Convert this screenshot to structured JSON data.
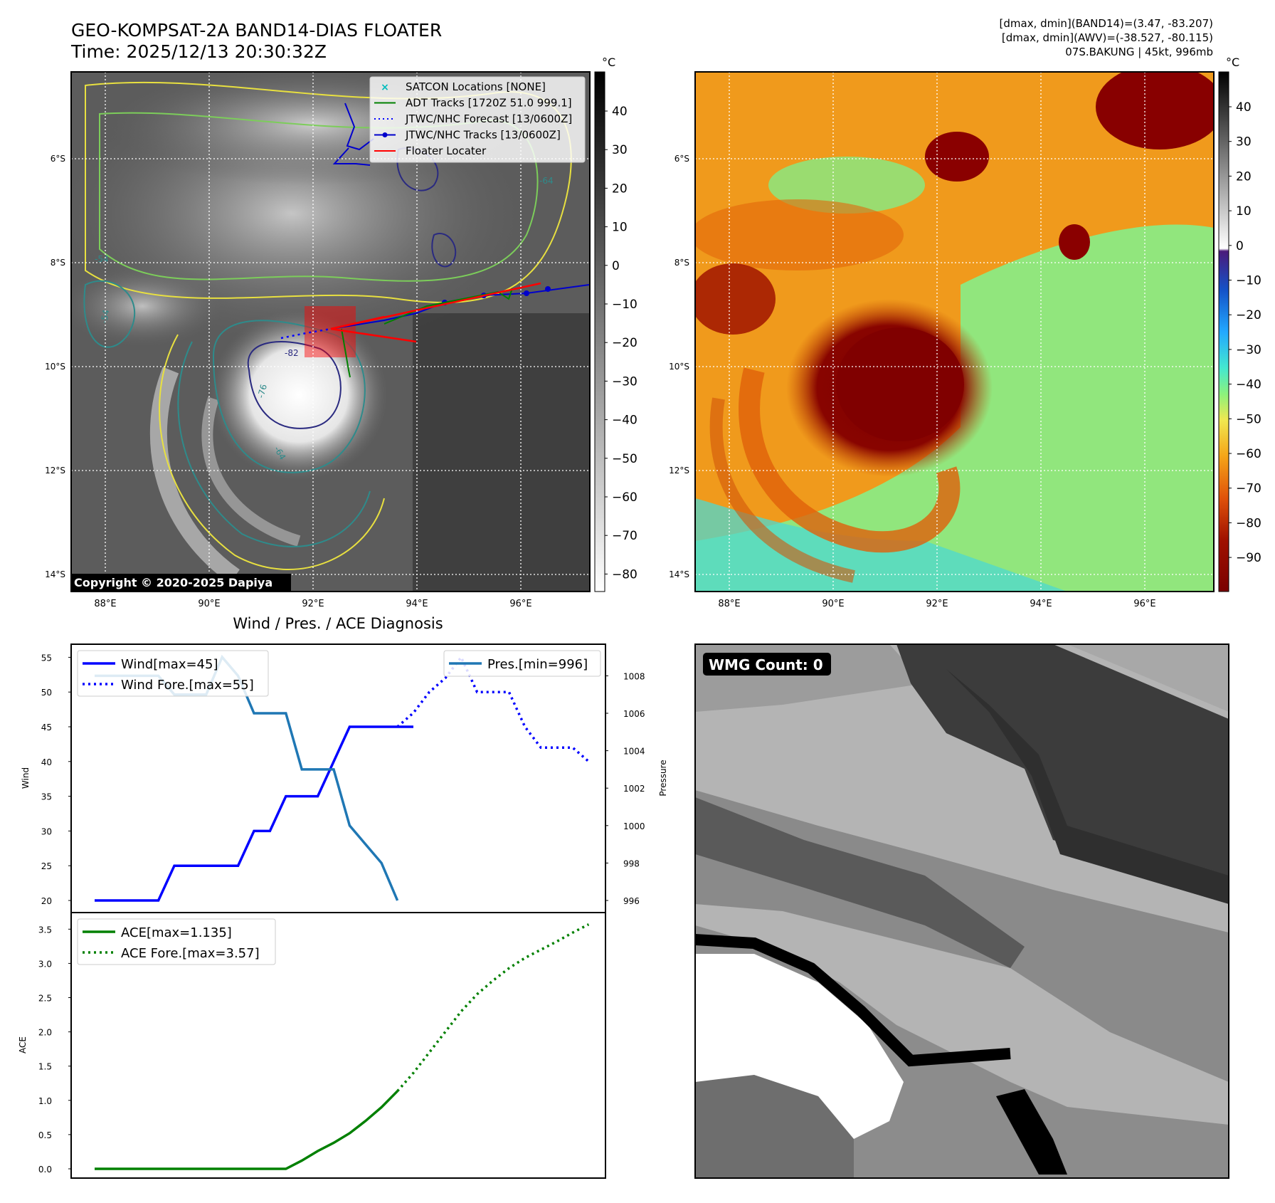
{
  "header": {
    "title_line1": "GEO-KOMPSAT-2A BAND14-DIAS FLOATER",
    "title_line2": "Time: 2025/12/13 20:30:32Z",
    "info_line1": "[dmax, dmin](BAND14)=(3.47, -83.207)",
    "info_line2": "[dmax, dmin](AWV)=(-38.527, -80.115)",
    "info_line3": "07S.BAKUNG | 45kt, 996mb"
  },
  "map": {
    "lat_ticks": [
      "6°S",
      "8°S",
      "10°S",
      "12°S",
      "14°S"
    ],
    "lon_ticks": [
      "88°E",
      "90°E",
      "92°E",
      "94°E",
      "96°E"
    ],
    "copyright": "Copyright © 2020-2025 Dapiya",
    "contour_labels": [
      "-76",
      "-64",
      "-64",
      "-54",
      "-54",
      "-82"
    ],
    "legend": [
      {
        "label": "SATCON Locations [NONE]",
        "color": "#00bcbc",
        "style": "x-marker"
      },
      {
        "label": "ADT Tracks [1720Z 51.0 999.1]",
        "color": "#008000",
        "style": "solid"
      },
      {
        "label": "JTWC/NHC Forecast [13/0600Z]",
        "color": "#0000ff",
        "style": "dotted"
      },
      {
        "label": "JTWC/NHC Tracks [13/0600Z]",
        "color": "#0000cc",
        "style": "solid-dot"
      },
      {
        "label": "Floater Locater",
        "color": "#ff0000",
        "style": "solid"
      }
    ]
  },
  "colorbar_gray": {
    "unit": "°C",
    "ticks": [
      "40",
      "30",
      "20",
      "10",
      "0",
      "−10",
      "−20",
      "−30",
      "−40",
      "−50",
      "−60",
      "−70",
      "−80"
    ]
  },
  "colorbar_color": {
    "unit": "°C",
    "ticks": [
      "40",
      "30",
      "20",
      "10",
      "0",
      "−10",
      "−20",
      "−30",
      "−40",
      "−50",
      "−60",
      "−70",
      "−80",
      "−90"
    ]
  },
  "wmg": {
    "label": "WMG Count: 0"
  },
  "colors": {
    "wind": "#0000ff",
    "pressure": "#1f77b4",
    "ace": "#008000",
    "adt": "#008000",
    "floater": "#ff0000"
  },
  "chart_data": [
    {
      "type": "line",
      "title": "Wind / Pres. / ACE Diagnosis",
      "ylabel": "Wind",
      "y2label": "Pressure",
      "ylim": [
        19,
        56
      ],
      "y2lim": [
        995.3,
        1009.5
      ],
      "yticks": [
        "20",
        "25",
        "30",
        "35",
        "40",
        "45",
        "50",
        "55"
      ],
      "y2ticks": [
        "996",
        "998",
        "1000",
        "1002",
        "1004",
        "1006",
        "1008"
      ],
      "x": [
        0,
        1,
        2,
        3,
        4,
        5,
        6,
        7,
        8,
        9,
        10,
        11,
        12,
        13,
        14,
        15,
        16,
        17,
        18,
        19,
        20,
        21,
        22,
        23,
        24,
        25,
        26,
        27,
        28,
        29,
        30,
        31
      ],
      "series": [
        {
          "name": "Wind[max=45]",
          "axis": "left",
          "style": "solid",
          "x": [
            0,
            1,
            2,
            3,
            4,
            5,
            6,
            7,
            8,
            9,
            10,
            11,
            12,
            13,
            14,
            15,
            16,
            17,
            18,
            19,
            20
          ],
          "values": [
            20,
            20,
            20,
            20,
            20,
            25,
            25,
            25,
            25,
            25,
            30,
            30,
            35,
            35,
            35,
            40,
            45,
            45,
            45,
            45,
            45
          ]
        },
        {
          "name": "Wind Fore.[max=55]",
          "axis": "left",
          "style": "dotted",
          "x": [
            19,
            20,
            21,
            22,
            23,
            24,
            25,
            26,
            27,
            28,
            29,
            30,
            31
          ],
          "values": [
            45,
            47,
            50,
            52,
            55,
            50,
            50,
            50,
            45,
            42,
            42,
            42,
            40
          ]
        },
        {
          "name": "Pres.[min=996]",
          "axis": "right",
          "style": "solid",
          "x": [
            0,
            1,
            2,
            3,
            4,
            5,
            6,
            7,
            8,
            9,
            10,
            11,
            12,
            13,
            14,
            15,
            16,
            17,
            18,
            19
          ],
          "values": [
            1008,
            1008,
            1008,
            1008,
            1008,
            1007,
            1007,
            1007,
            1009,
            1008,
            1006,
            1006,
            1006,
            1003,
            1003,
            1003,
            1000,
            999,
            998,
            996
          ]
        }
      ]
    },
    {
      "type": "line",
      "ylabel": "ACE",
      "ylim": [
        -0.1,
        3.75
      ],
      "yticks": [
        "0.0",
        "0.5",
        "1.0",
        "1.5",
        "2.0",
        "2.5",
        "3.0",
        "3.5"
      ],
      "series": [
        {
          "name": "ACE[max=1.135]",
          "style": "solid",
          "x": [
            0,
            1,
            2,
            3,
            4,
            5,
            6,
            7,
            8,
            9,
            10,
            11,
            12,
            13,
            14,
            15,
            16,
            17,
            18,
            19
          ],
          "values": [
            0,
            0,
            0,
            0,
            0,
            0,
            0,
            0,
            0,
            0,
            0,
            0,
            0,
            0.12,
            0.26,
            0.38,
            0.52,
            0.7,
            0.9,
            1.135
          ]
        },
        {
          "name": "ACE Fore.[max=3.57]",
          "style": "dotted",
          "x": [
            19,
            20,
            21,
            22,
            23,
            24,
            25,
            26,
            27,
            28,
            29,
            30,
            31
          ],
          "values": [
            1.135,
            1.4,
            1.7,
            2.0,
            2.3,
            2.55,
            2.75,
            2.93,
            3.08,
            3.2,
            3.32,
            3.45,
            3.57
          ]
        }
      ]
    }
  ]
}
